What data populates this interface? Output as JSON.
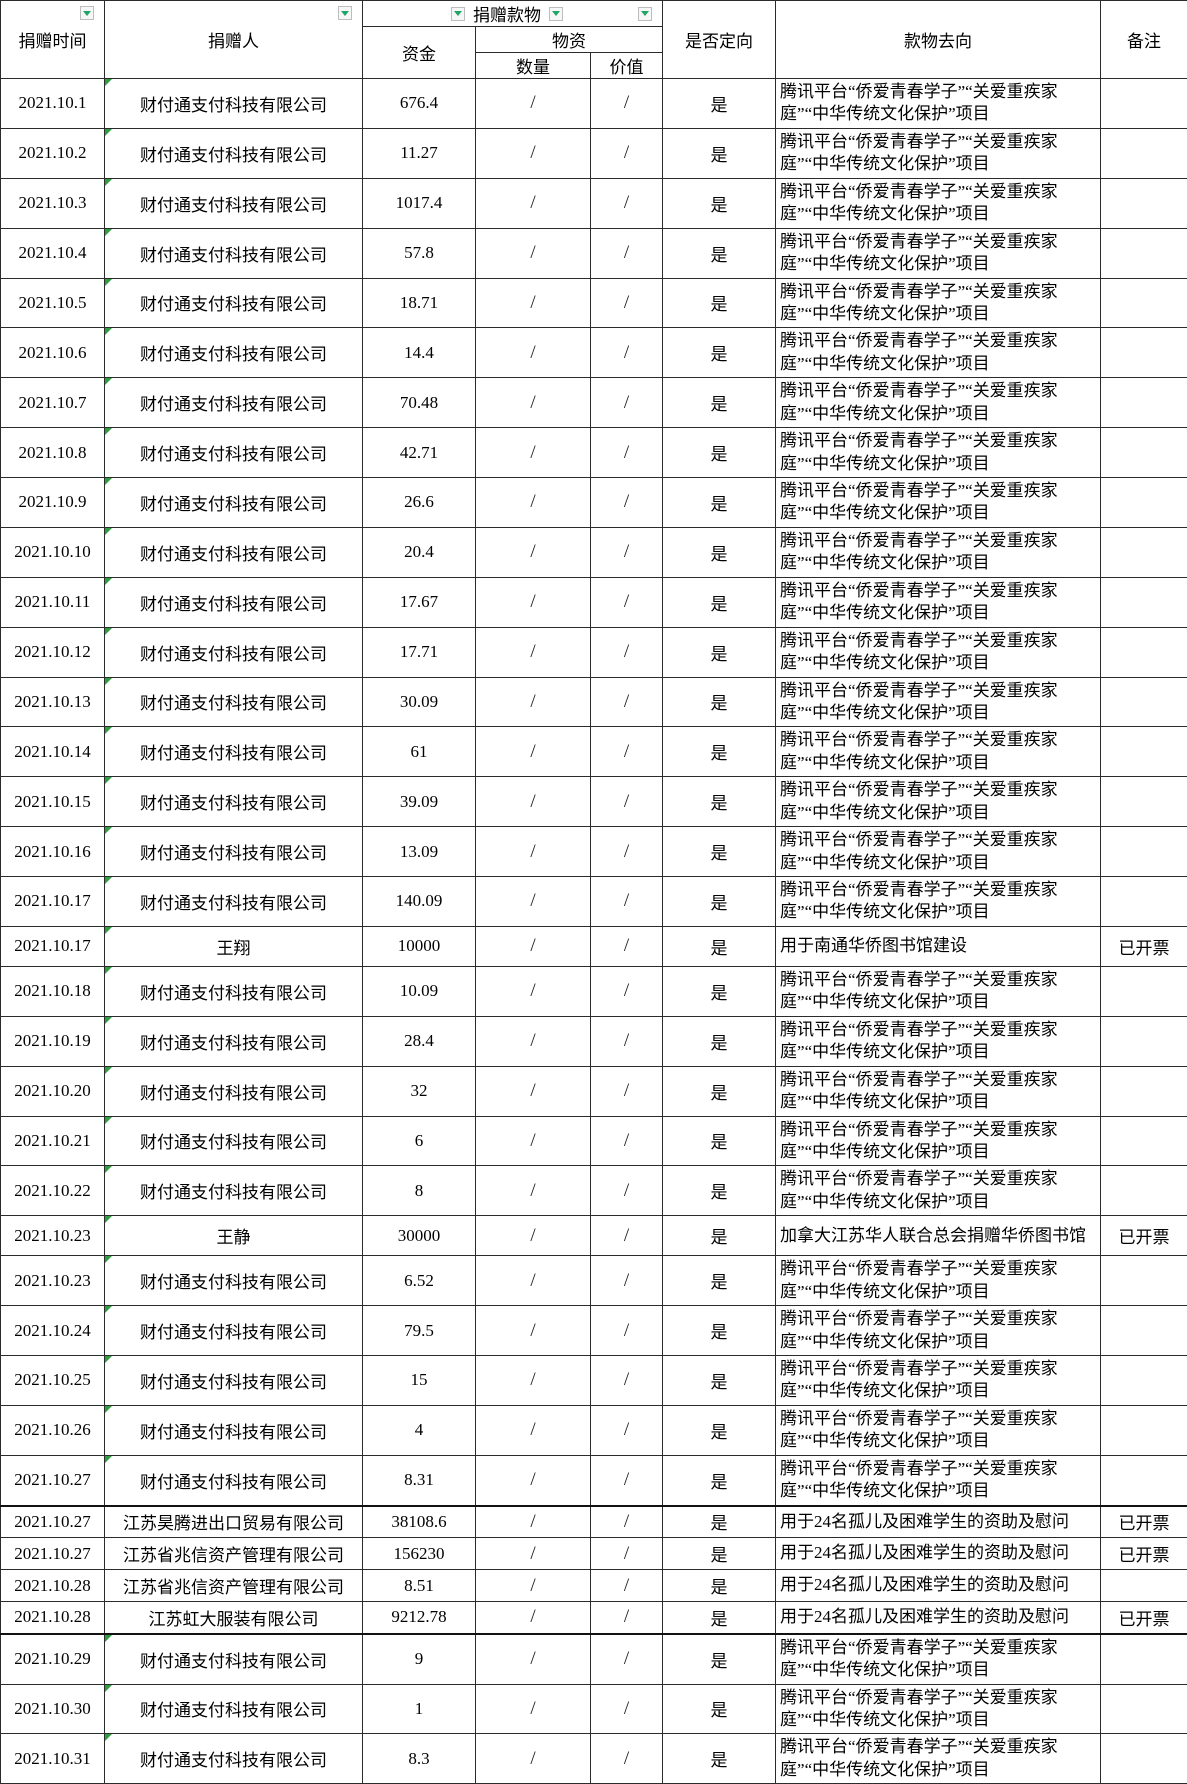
{
  "header": {
    "col_time": "捐赠时间",
    "col_donor": "捐赠人",
    "col_donation_group": "捐赠款物",
    "col_funds": "资金",
    "col_materials": "物资",
    "col_quantity": "数量",
    "col_value": "价值",
    "col_directed": "是否定向",
    "col_destination": "款物去向",
    "col_remark": "备注"
  },
  "icons": {
    "filter_dropdown": "filter-dropdown-icon",
    "cell_corner_marker": "cell-corner-marker"
  },
  "colors": {
    "filter_arrow_green": "#21a567",
    "marker_green": "#2f9e41",
    "grid_border": "#2b2b2b"
  },
  "destinations": {
    "tencent": "腾讯平台“侨爱青春学子”“关爱重疾家庭”“中华传统文化保护”项目",
    "library_build": "用于南通华侨图书馆建设",
    "canada_library": "加拿大江苏华人联合总会捐赠华侨图书馆",
    "orphans": "用于24名孤儿及困难学生的资助及慰问"
  },
  "rows": [
    {
      "date": "2021.10.1",
      "donor": "财付通支付科技有限公司",
      "amount": "676.4",
      "qty": "/",
      "value": "/",
      "directed": "是",
      "dest": "腾讯平台“侨爱青春学子”“关爱重疾家庭”“中华传统文化保护”项目",
      "remark": "",
      "type": "tall",
      "marker": true,
      "thick_top": false
    },
    {
      "date": "2021.10.2",
      "donor": "财付通支付科技有限公司",
      "amount": "11.27",
      "qty": "/",
      "value": "/",
      "directed": "是",
      "dest": "腾讯平台“侨爱青春学子”“关爱重疾家庭”“中华传统文化保护”项目",
      "remark": "",
      "type": "tall",
      "marker": true,
      "thick_top": false
    },
    {
      "date": "2021.10.3",
      "donor": "财付通支付科技有限公司",
      "amount": "1017.4",
      "qty": "/",
      "value": "/",
      "directed": "是",
      "dest": "腾讯平台“侨爱青春学子”“关爱重疾家庭”“中华传统文化保护”项目",
      "remark": "",
      "type": "tall",
      "marker": true,
      "thick_top": false
    },
    {
      "date": "2021.10.4",
      "donor": "财付通支付科技有限公司",
      "amount": "57.8",
      "qty": "/",
      "value": "/",
      "directed": "是",
      "dest": "腾讯平台“侨爱青春学子”“关爱重疾家庭”“中华传统文化保护”项目",
      "remark": "",
      "type": "tall",
      "marker": true,
      "thick_top": false
    },
    {
      "date": "2021.10.5",
      "donor": "财付通支付科技有限公司",
      "amount": "18.71",
      "qty": "/",
      "value": "/",
      "directed": "是",
      "dest": "腾讯平台“侨爱青春学子”“关爱重疾家庭”“中华传统文化保护”项目",
      "remark": "",
      "type": "tall",
      "marker": true,
      "thick_top": false
    },
    {
      "date": "2021.10.6",
      "donor": "财付通支付科技有限公司",
      "amount": "14.4",
      "qty": "/",
      "value": "/",
      "directed": "是",
      "dest": "腾讯平台“侨爱青春学子”“关爱重疾家庭”“中华传统文化保护”项目",
      "remark": "",
      "type": "tall",
      "marker": true,
      "thick_top": false
    },
    {
      "date": "2021.10.7",
      "donor": "财付通支付科技有限公司",
      "amount": "70.48",
      "qty": "/",
      "value": "/",
      "directed": "是",
      "dest": "腾讯平台“侨爱青春学子”“关爱重疾家庭”“中华传统文化保护”项目",
      "remark": "",
      "type": "tall",
      "marker": true,
      "thick_top": false
    },
    {
      "date": "2021.10.8",
      "donor": "财付通支付科技有限公司",
      "amount": "42.71",
      "qty": "/",
      "value": "/",
      "directed": "是",
      "dest": "腾讯平台“侨爱青春学子”“关爱重疾家庭”“中华传统文化保护”项目",
      "remark": "",
      "type": "tall",
      "marker": true,
      "thick_top": false
    },
    {
      "date": "2021.10.9",
      "donor": "财付通支付科技有限公司",
      "amount": "26.6",
      "qty": "/",
      "value": "/",
      "directed": "是",
      "dest": "腾讯平台“侨爱青春学子”“关爱重疾家庭”“中华传统文化保护”项目",
      "remark": "",
      "type": "tall",
      "marker": true,
      "thick_top": false
    },
    {
      "date": "2021.10.10",
      "donor": "财付通支付科技有限公司",
      "amount": "20.4",
      "qty": "/",
      "value": "/",
      "directed": "是",
      "dest": "腾讯平台“侨爱青春学子”“关爱重疾家庭”“中华传统文化保护”项目",
      "remark": "",
      "type": "tall",
      "marker": true,
      "thick_top": false
    },
    {
      "date": "2021.10.11",
      "donor": "财付通支付科技有限公司",
      "amount": "17.67",
      "qty": "/",
      "value": "/",
      "directed": "是",
      "dest": "腾讯平台“侨爱青春学子”“关爱重疾家庭”“中华传统文化保护”项目",
      "remark": "",
      "type": "tall",
      "marker": true,
      "thick_top": false
    },
    {
      "date": "2021.10.12",
      "donor": "财付通支付科技有限公司",
      "amount": "17.71",
      "qty": "/",
      "value": "/",
      "directed": "是",
      "dest": "腾讯平台“侨爱青春学子”“关爱重疾家庭”“中华传统文化保护”项目",
      "remark": "",
      "type": "tall",
      "marker": true,
      "thick_top": false
    },
    {
      "date": "2021.10.13",
      "donor": "财付通支付科技有限公司",
      "amount": "30.09",
      "qty": "/",
      "value": "/",
      "directed": "是",
      "dest": "腾讯平台“侨爱青春学子”“关爱重疾家庭”“中华传统文化保护”项目",
      "remark": "",
      "type": "tall",
      "marker": true,
      "thick_top": false
    },
    {
      "date": "2021.10.14",
      "donor": "财付通支付科技有限公司",
      "amount": "61",
      "qty": "/",
      "value": "/",
      "directed": "是",
      "dest": "腾讯平台“侨爱青春学子”“关爱重疾家庭”“中华传统文化保护”项目",
      "remark": "",
      "type": "tall",
      "marker": true,
      "thick_top": false
    },
    {
      "date": "2021.10.15",
      "donor": "财付通支付科技有限公司",
      "amount": "39.09",
      "qty": "/",
      "value": "/",
      "directed": "是",
      "dest": "腾讯平台“侨爱青春学子”“关爱重疾家庭”“中华传统文化保护”项目",
      "remark": "",
      "type": "tall",
      "marker": true,
      "thick_top": false
    },
    {
      "date": "2021.10.16",
      "donor": "财付通支付科技有限公司",
      "amount": "13.09",
      "qty": "/",
      "value": "/",
      "directed": "是",
      "dest": "腾讯平台“侨爱青春学子”“关爱重疾家庭”“中华传统文化保护”项目",
      "remark": "",
      "type": "tall",
      "marker": true,
      "thick_top": false
    },
    {
      "date": "2021.10.17",
      "donor": "财付通支付科技有限公司",
      "amount": "140.09",
      "qty": "/",
      "value": "/",
      "directed": "是",
      "dest": "腾讯平台“侨爱青春学子”“关爱重疾家庭”“中华传统文化保护”项目",
      "remark": "",
      "type": "tall",
      "marker": true,
      "thick_top": false
    },
    {
      "date": "2021.10.17",
      "donor": "王翔",
      "amount": "10000",
      "qty": "/",
      "value": "/",
      "directed": "是",
      "dest": "用于南通华侨图书馆建设",
      "remark": "已开票",
      "type": "person",
      "marker": true,
      "thick_top": false
    },
    {
      "date": "2021.10.18",
      "donor": "财付通支付科技有限公司",
      "amount": "10.09",
      "qty": "/",
      "value": "/",
      "directed": "是",
      "dest": "腾讯平台“侨爱青春学子”“关爱重疾家庭”“中华传统文化保护”项目",
      "remark": "",
      "type": "tall",
      "marker": true,
      "thick_top": false
    },
    {
      "date": "2021.10.19",
      "donor": "财付通支付科技有限公司",
      "amount": "28.4",
      "qty": "/",
      "value": "/",
      "directed": "是",
      "dest": "腾讯平台“侨爱青春学子”“关爱重疾家庭”“中华传统文化保护”项目",
      "remark": "",
      "type": "tall",
      "marker": true,
      "thick_top": false
    },
    {
      "date": "2021.10.20",
      "donor": "财付通支付科技有限公司",
      "amount": "32",
      "qty": "/",
      "value": "/",
      "directed": "是",
      "dest": "腾讯平台“侨爱青春学子”“关爱重疾家庭”“中华传统文化保护”项目",
      "remark": "",
      "type": "tall",
      "marker": true,
      "thick_top": false
    },
    {
      "date": "2021.10.21",
      "donor": "财付通支付科技有限公司",
      "amount": "6",
      "qty": "/",
      "value": "/",
      "directed": "是",
      "dest": "腾讯平台“侨爱青春学子”“关爱重疾家庭”“中华传统文化保护”项目",
      "remark": "",
      "type": "tall",
      "marker": true,
      "thick_top": false
    },
    {
      "date": "2021.10.22",
      "donor": "财付通支付科技有限公司",
      "amount": "8",
      "qty": "/",
      "value": "/",
      "directed": "是",
      "dest": "腾讯平台“侨爱青春学子”“关爱重疾家庭”“中华传统文化保护”项目",
      "remark": "",
      "type": "tall",
      "marker": true,
      "thick_top": false
    },
    {
      "date": "2021.10.23",
      "donor": "王静",
      "amount": "30000",
      "qty": "/",
      "value": "/",
      "directed": "是",
      "dest": "加拿大江苏华人联合总会捐赠华侨图书馆",
      "remark": "已开票",
      "type": "person",
      "marker": true,
      "thick_top": false
    },
    {
      "date": "2021.10.23",
      "donor": "财付通支付科技有限公司",
      "amount": "6.52",
      "qty": "/",
      "value": "/",
      "directed": "是",
      "dest": "腾讯平台“侨爱青春学子”“关爱重疾家庭”“中华传统文化保护”项目",
      "remark": "",
      "type": "tall",
      "marker": true,
      "thick_top": false
    },
    {
      "date": "2021.10.24",
      "donor": "财付通支付科技有限公司",
      "amount": "79.5",
      "qty": "/",
      "value": "/",
      "directed": "是",
      "dest": "腾讯平台“侨爱青春学子”“关爱重疾家庭”“中华传统文化保护”项目",
      "remark": "",
      "type": "tall",
      "marker": true,
      "thick_top": false
    },
    {
      "date": "2021.10.25",
      "donor": "财付通支付科技有限公司",
      "amount": "15",
      "qty": "/",
      "value": "/",
      "directed": "是",
      "dest": "腾讯平台“侨爱青春学子”“关爱重疾家庭”“中华传统文化保护”项目",
      "remark": "",
      "type": "tall",
      "marker": true,
      "thick_top": false
    },
    {
      "date": "2021.10.26",
      "donor": "财付通支付科技有限公司",
      "amount": "4",
      "qty": "/",
      "value": "/",
      "directed": "是",
      "dest": "腾讯平台“侨爱青春学子”“关爱重疾家庭”“中华传统文化保护”项目",
      "remark": "",
      "type": "tall",
      "marker": true,
      "thick_top": false
    },
    {
      "date": "2021.10.27",
      "donor": "财付通支付科技有限公司",
      "amount": "8.31",
      "qty": "/",
      "value": "/",
      "directed": "是",
      "dest": "腾讯平台“侨爱青春学子”“关爱重疾家庭”“中华传统文化保护”项目",
      "remark": "",
      "type": "tall",
      "marker": true,
      "thick_top": false
    },
    {
      "date": "2021.10.27",
      "donor": "江苏昊腾进出口贸易有限公司",
      "amount": "38108.6",
      "qty": "/",
      "value": "/",
      "directed": "是",
      "dest": "用于24名孤儿及困难学生的资助及慰问",
      "remark": "已开票",
      "type": "company",
      "marker": false,
      "thick_top": true
    },
    {
      "date": "2021.10.27",
      "donor": "江苏省兆信资产管理有限公司",
      "amount": "156230",
      "qty": "/",
      "value": "/",
      "directed": "是",
      "dest": "用于24名孤儿及困难学生的资助及慰问",
      "remark": "已开票",
      "type": "company",
      "marker": false,
      "thick_top": false
    },
    {
      "date": "2021.10.28",
      "donor": "江苏省兆信资产管理有限公司",
      "amount": "8.51",
      "qty": "/",
      "value": "/",
      "directed": "是",
      "dest": "用于24名孤儿及困难学生的资助及慰问",
      "remark": "",
      "type": "company",
      "marker": false,
      "thick_top": false
    },
    {
      "date": "2021.10.28",
      "donor": "江苏虹大服装有限公司",
      "amount": "9212.78",
      "qty": "/",
      "value": "/",
      "directed": "是",
      "dest": "用于24名孤儿及困难学生的资助及慰问",
      "remark": "已开票",
      "type": "company",
      "marker": false,
      "thick_top": false
    },
    {
      "date": "2021.10.29",
      "donor": "财付通支付科技有限公司",
      "amount": "9",
      "qty": "/",
      "value": "/",
      "directed": "是",
      "dest": "腾讯平台“侨爱青春学子”“关爱重疾家庭”“中华传统文化保护”项目",
      "remark": "",
      "type": "tall",
      "marker": true,
      "thick_top": true
    },
    {
      "date": "2021.10.30",
      "donor": "财付通支付科技有限公司",
      "amount": "1",
      "qty": "/",
      "value": "/",
      "directed": "是",
      "dest": "腾讯平台“侨爱青春学子”“关爱重疾家庭”“中华传统文化保护”项目",
      "remark": "",
      "type": "tall",
      "marker": true,
      "thick_top": false
    },
    {
      "date": "2021.10.31",
      "donor": "财付通支付科技有限公司",
      "amount": "8.3",
      "qty": "/",
      "value": "/",
      "directed": "是",
      "dest": "腾讯平台“侨爱青春学子”“关爱重疾家庭”“中华传统文化保护”项目",
      "remark": "",
      "type": "tall",
      "marker": true,
      "thick_top": false
    }
  ]
}
